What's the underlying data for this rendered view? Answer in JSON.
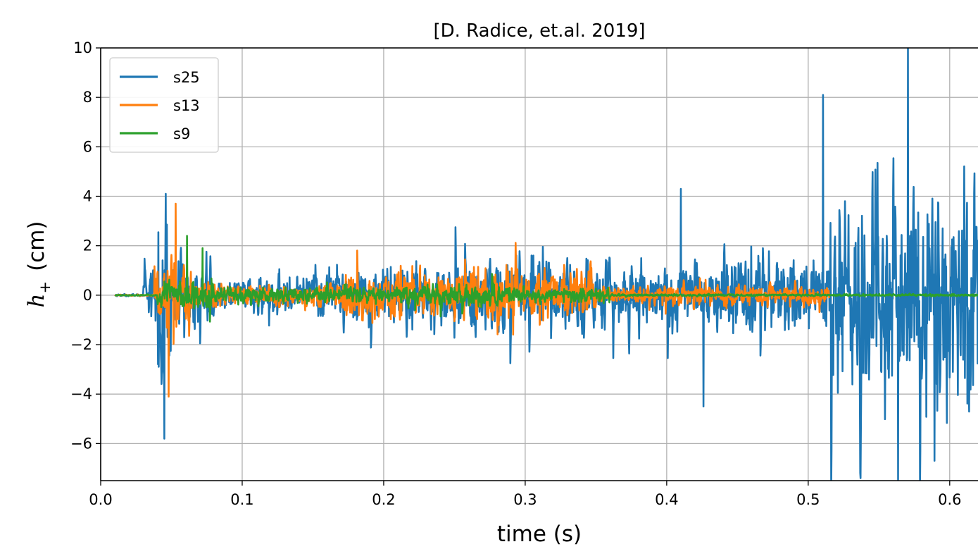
{
  "chart_data": {
    "type": "line",
    "title": "[D. Radice, et.al. 2019]",
    "xlabel": "time (s)",
    "ylabel_main": "h",
    "ylabel_sub": "+",
    "ylabel_unit": "(cm)",
    "xlim": [
      0.0,
      0.62
    ],
    "ylim": [
      -7.5,
      10
    ],
    "xticks": [
      0.0,
      0.1,
      0.2,
      0.3,
      0.4,
      0.5,
      0.6
    ],
    "xtick_labels": [
      "0.0",
      "0.1",
      "0.2",
      "0.3",
      "0.4",
      "0.5",
      "0.6"
    ],
    "yticks": [
      -6,
      -4,
      -2,
      0,
      2,
      4,
      6,
      8,
      10
    ],
    "ytick_labels": [
      "−6",
      "−4",
      "−2",
      "0",
      "2",
      "4",
      "6",
      "8",
      "10"
    ],
    "grid": true,
    "legend_position": "top-left",
    "series": [
      {
        "name": "s25",
        "color": "#1f77b4",
        "segments": [
          {
            "t0": 0.01,
            "t1": 0.03,
            "peak": 0.08
          },
          {
            "t0": 0.03,
            "t1": 0.04,
            "peak": 1.8
          },
          {
            "t0": 0.04,
            "t1": 0.05,
            "peak": 5.0
          },
          {
            "t0": 0.05,
            "t1": 0.06,
            "peak": 3.0
          },
          {
            "t0": 0.06,
            "t1": 0.08,
            "peak": 2.2
          },
          {
            "t0": 0.08,
            "t1": 0.1,
            "peak": 0.9
          },
          {
            "t0": 0.1,
            "t1": 0.15,
            "peak": 1.2
          },
          {
            "t0": 0.15,
            "t1": 0.25,
            "peak": 2.0
          },
          {
            "t0": 0.25,
            "t1": 0.35,
            "peak": 2.6
          },
          {
            "t0": 0.35,
            "t1": 0.44,
            "peak": 2.4
          },
          {
            "t0": 0.44,
            "t1": 0.515,
            "peak": 2.8
          },
          {
            "t0": 0.515,
            "t1": 0.62,
            "peak": 7.5
          }
        ],
        "extremes": [
          {
            "x": 0.046,
            "y": 4.1
          },
          {
            "x": 0.045,
            "y": -5.8
          },
          {
            "x": 0.426,
            "y": -4.5
          },
          {
            "x": 0.41,
            "y": 4.3
          },
          {
            "x": 0.5705,
            "y": 10.0
          },
          {
            "x": 0.5105,
            "y": -7.5
          },
          {
            "x": 0.5635,
            "y": -7.5
          },
          {
            "x": 0.5105,
            "y": 8.1
          }
        ]
      },
      {
        "name": "s13",
        "color": "#ff7f0e",
        "segments": [
          {
            "t0": 0.01,
            "t1": 0.038,
            "peak": 0.05
          },
          {
            "t0": 0.038,
            "t1": 0.064,
            "peak": 2.6
          },
          {
            "t0": 0.064,
            "t1": 0.09,
            "peak": 1.0
          },
          {
            "t0": 0.09,
            "t1": 0.17,
            "peak": 0.8
          },
          {
            "t0": 0.17,
            "t1": 0.27,
            "peak": 1.7
          },
          {
            "t0": 0.27,
            "t1": 0.35,
            "peak": 2.0
          },
          {
            "t0": 0.35,
            "t1": 0.515,
            "peak": 0.7
          }
        ],
        "extremes": [
          {
            "x": 0.053,
            "y": 3.7
          },
          {
            "x": 0.048,
            "y": -4.1
          }
        ]
      },
      {
        "name": "s9",
        "color": "#2ca02c",
        "segments": [
          {
            "t0": 0.01,
            "t1": 0.04,
            "peak": 0.04
          },
          {
            "t0": 0.04,
            "t1": 0.08,
            "peak": 1.0
          },
          {
            "t0": 0.08,
            "t1": 0.23,
            "peak": 0.55
          },
          {
            "t0": 0.23,
            "t1": 0.3,
            "peak": 0.8
          },
          {
            "t0": 0.3,
            "t1": 0.36,
            "peak": 0.5
          },
          {
            "t0": 0.36,
            "t1": 0.62,
            "peak": 0.08
          }
        ],
        "extremes": [
          {
            "x": 0.061,
            "y": 2.4
          },
          {
            "x": 0.072,
            "y": 1.9
          }
        ]
      }
    ]
  }
}
